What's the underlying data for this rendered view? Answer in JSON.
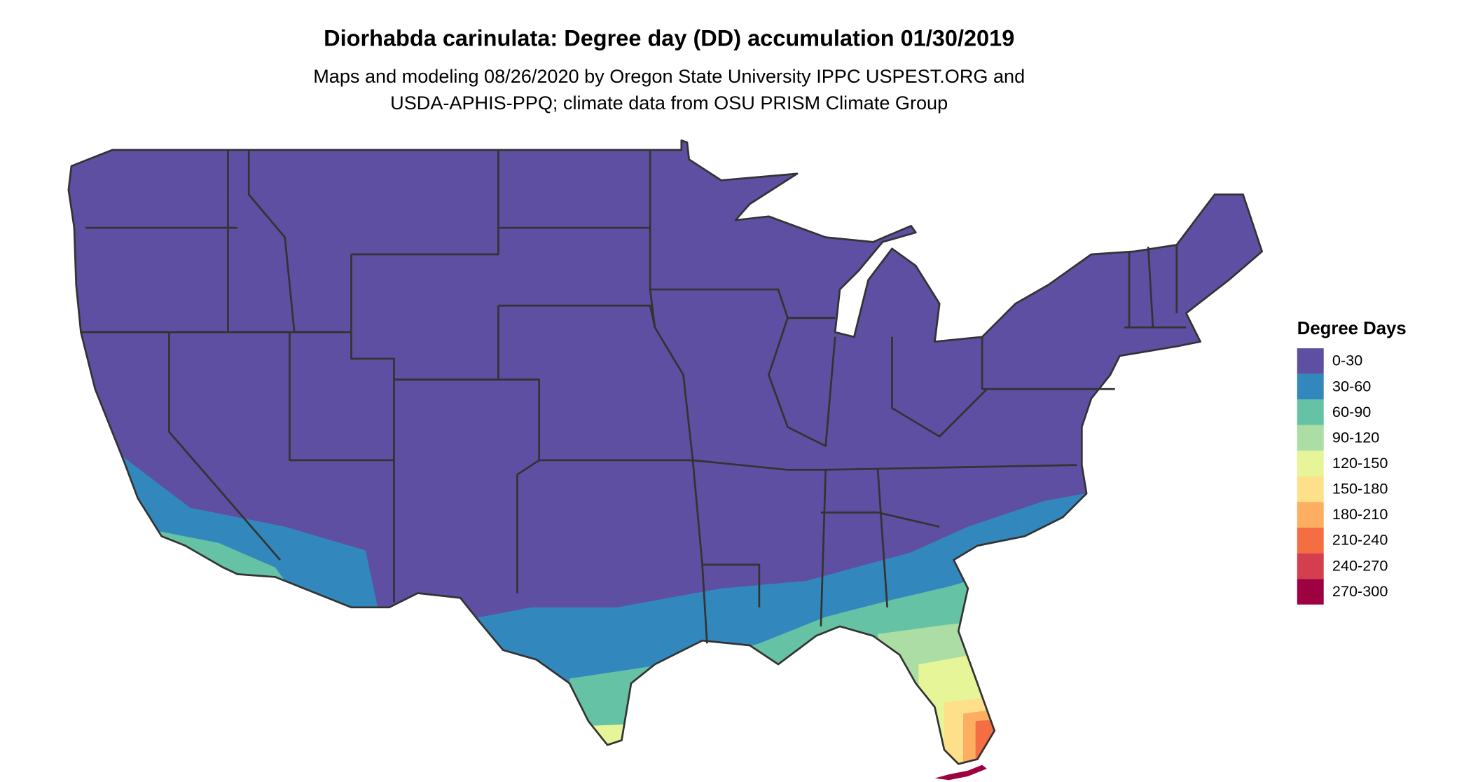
{
  "title": "Diorhabda carinulata: Degree day (DD) accumulation 01/30/2019",
  "subtitle": [
    "Maps and modeling 08/26/2020 by Oregon State University IPPC USPEST.ORG and",
    "USDA-APHIS-PPQ; climate data from OSU PRISM Climate Group"
  ],
  "legend": {
    "title": "Degree Days",
    "items": [
      {
        "label": "0-30",
        "color": "#5E4FA2"
      },
      {
        "label": "30-60",
        "color": "#3288BD"
      },
      {
        "label": "60-90",
        "color": "#66C2A5"
      },
      {
        "label": "90-120",
        "color": "#ABDDA4"
      },
      {
        "label": "120-150",
        "color": "#E6F598"
      },
      {
        "label": "150-180",
        "color": "#FEE08B"
      },
      {
        "label": "180-210",
        "color": "#FDAE61"
      },
      {
        "label": "210-240",
        "color": "#F46D43"
      },
      {
        "label": "240-270",
        "color": "#D53E4F"
      },
      {
        "label": "270-300",
        "color": "#9E0142"
      }
    ]
  }
}
